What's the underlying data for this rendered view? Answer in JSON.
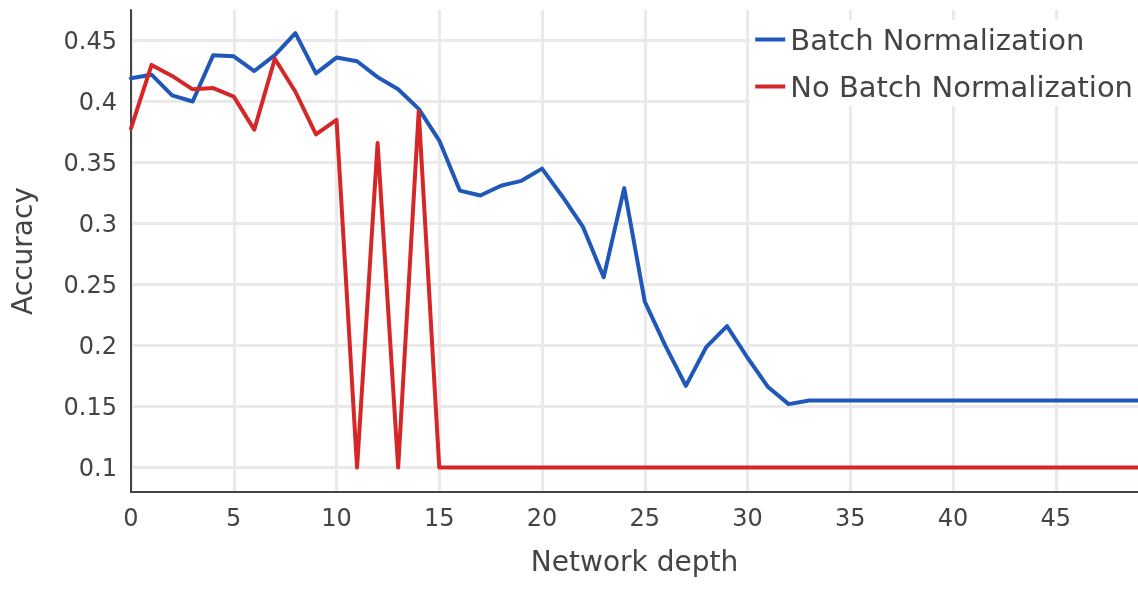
{
  "chart_data": {
    "type": "line",
    "xlabel": "Network depth",
    "ylabel": "Accuracy",
    "x": [
      0,
      1,
      2,
      3,
      4,
      5,
      6,
      7,
      8,
      9,
      10,
      11,
      12,
      13,
      14,
      15,
      16,
      17,
      18,
      19,
      20,
      21,
      22,
      23,
      24,
      25,
      26,
      27,
      28,
      29,
      30,
      31,
      32,
      33,
      34,
      35,
      36,
      37,
      38,
      39,
      40,
      41,
      42,
      43,
      44,
      45,
      46,
      47,
      48,
      49
    ],
    "series": [
      {
        "name": "Batch Normalization",
        "color": "#1f58b8",
        "values": [
          0.419,
          0.422,
          0.405,
          0.4,
          0.438,
          0.437,
          0.425,
          0.438,
          0.456,
          0.423,
          0.436,
          0.433,
          0.42,
          0.41,
          0.394,
          0.368,
          0.327,
          0.323,
          0.331,
          0.335,
          0.345,
          0.322,
          0.297,
          0.256,
          0.329,
          0.236,
          0.2,
          0.167,
          0.199,
          0.216,
          0.19,
          0.166,
          0.152,
          0.155,
          0.155,
          0.155,
          0.155,
          0.155,
          0.155,
          0.155,
          0.155,
          0.155,
          0.155,
          0.155,
          0.155,
          0.155,
          0.155,
          0.155,
          0.155,
          0.155
        ]
      },
      {
        "name": "No Batch Normalization",
        "color": "#d62728",
        "values": [
          0.378,
          0.43,
          0.421,
          0.41,
          0.411,
          0.404,
          0.377,
          0.435,
          0.408,
          0.373,
          0.385,
          0.1,
          0.366,
          0.1,
          0.392,
          0.1,
          0.1,
          0.1,
          0.1,
          0.1,
          0.1,
          0.1,
          0.1,
          0.1,
          0.1,
          0.1,
          0.1,
          0.1,
          0.1,
          0.1,
          0.1,
          0.1,
          0.1,
          0.1,
          0.1,
          0.1,
          0.1,
          0.1,
          0.1,
          0.1,
          0.1,
          0.1,
          0.1,
          0.1,
          0.1,
          0.1,
          0.1,
          0.1,
          0.1,
          0.1
        ]
      }
    ],
    "xlim": [
      0,
      49
    ],
    "xticks": [
      0,
      5,
      10,
      15,
      20,
      25,
      30,
      35,
      40,
      45
    ],
    "ylim": [
      0.08,
      0.475
    ],
    "yticks": [
      0.1,
      0.15,
      0.2,
      0.25,
      0.3,
      0.35,
      0.4,
      0.45
    ],
    "grid": true,
    "legend": "top right",
    "marker": "none",
    "line_style": "solid"
  }
}
